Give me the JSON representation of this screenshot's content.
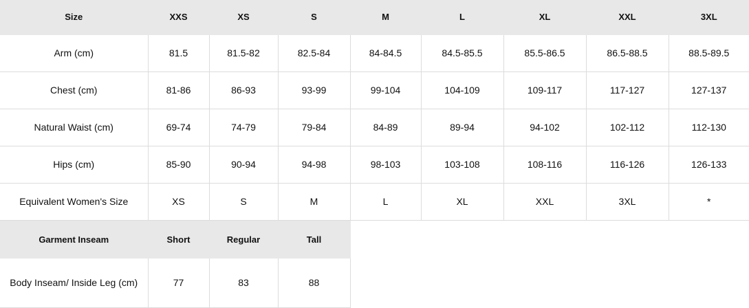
{
  "size_table": {
    "header": [
      "Size",
      "XXS",
      "XS",
      "S",
      "M",
      "L",
      "XL",
      "XXL",
      "3XL"
    ],
    "rows": [
      [
        "Arm (cm)",
        "81.5",
        "81.5-82",
        "82.5-84",
        "84-84.5",
        "84.5-85.5",
        "85.5-86.5",
        "86.5-88.5",
        "88.5-89.5"
      ],
      [
        "Chest (cm)",
        "81-86",
        "86-93",
        "93-99",
        "99-104",
        "104-109",
        "109-117",
        "117-127",
        "127-137"
      ],
      [
        "Natural Waist (cm)",
        "69-74",
        "74-79",
        "79-84",
        "84-89",
        "89-94",
        "94-102",
        "102-112",
        "112-130"
      ],
      [
        "Hips (cm)",
        "85-90",
        "90-94",
        "94-98",
        "98-103",
        "103-108",
        "108-116",
        "116-126",
        "126-133"
      ],
      [
        "Equivalent Women's Size",
        "XS",
        "S",
        "M",
        "L",
        "XL",
        "XXL",
        "3XL",
        "*"
      ]
    ]
  },
  "inseam_table": {
    "header": [
      "Garment Inseam",
      "Short",
      "Regular",
      "Tall"
    ],
    "rows": [
      [
        "Body Inseam/ Inside Leg (cm)",
        "77",
        "83",
        "88"
      ]
    ]
  },
  "colors": {
    "header_bg": "#e8e8e8",
    "border": "#dcdcdc"
  }
}
